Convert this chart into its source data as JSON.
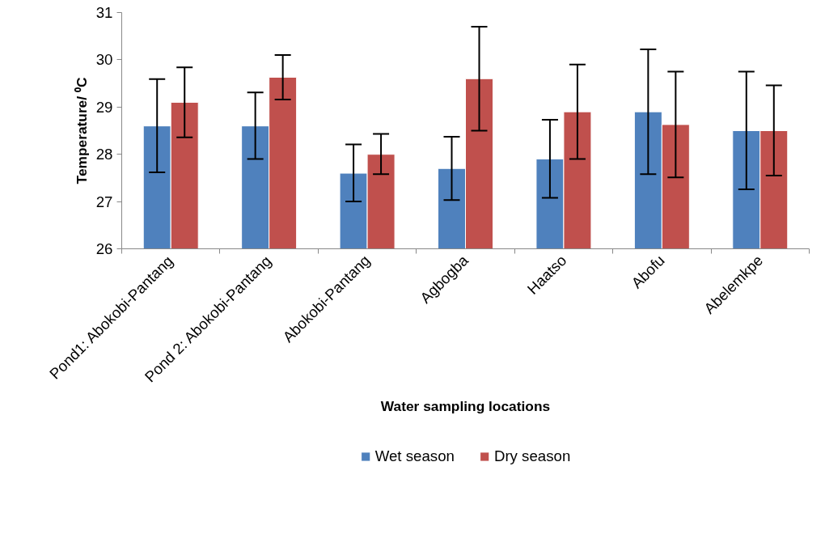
{
  "chart_data": {
    "type": "bar",
    "xlabel": "Water sampling locations",
    "ylabel": "Temperature/ ⁰C",
    "categories": [
      "Pond1: Abokobi-Pantang",
      "Pond 2: Abokobi-Pantang",
      "Abokobi-Pantang",
      "Agbogba",
      "Haatso",
      "Abofu",
      "Abelemkpe"
    ],
    "series": [
      {
        "name": "Wet season",
        "color": "#4f81bd",
        "values": [
          28.6,
          28.6,
          27.6,
          27.7,
          27.9,
          28.9,
          28.5
        ],
        "errors": [
          [
            27.62,
            29.59
          ],
          [
            27.9,
            29.31
          ],
          [
            27.0,
            28.21
          ],
          [
            27.03,
            28.37
          ],
          [
            27.08,
            28.73
          ],
          [
            27.58,
            30.22
          ],
          [
            27.26,
            29.75
          ]
        ]
      },
      {
        "name": "Dry season",
        "color": "#c0504d",
        "values": [
          29.1,
          29.63,
          28.0,
          29.6,
          28.9,
          28.63,
          28.5
        ],
        "errors": [
          [
            28.36,
            29.84
          ],
          [
            29.16,
            30.1
          ],
          [
            27.58,
            28.43
          ],
          [
            28.5,
            30.7
          ],
          [
            27.9,
            29.9
          ],
          [
            27.51,
            29.75
          ],
          [
            27.55,
            29.46
          ]
        ]
      }
    ],
    "ylim": [
      26,
      31
    ],
    "yticks": [
      26,
      27,
      28,
      29,
      30,
      31
    ],
    "grid": false,
    "legend": "bottom"
  }
}
